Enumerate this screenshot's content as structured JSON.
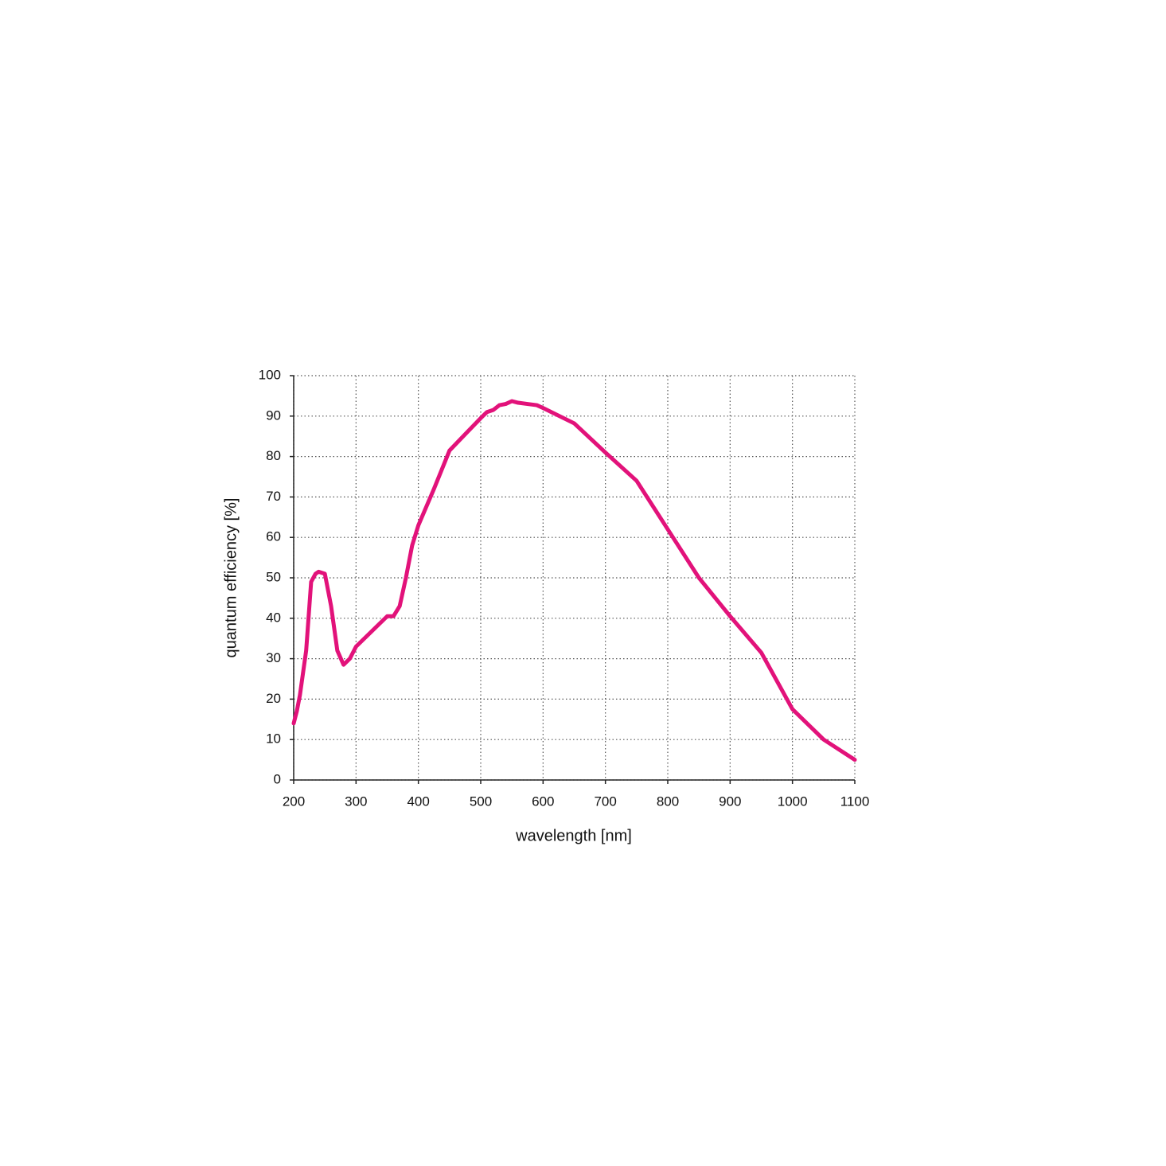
{
  "chart_data": {
    "type": "line",
    "x_label": "wavelength [nm]",
    "y_label": "quantum efficiency [%]",
    "x": [
      200,
      205,
      210,
      220,
      228,
      235,
      240,
      250,
      260,
      270,
      280,
      290,
      300,
      320,
      350,
      360,
      370,
      380,
      390,
      400,
      425,
      450,
      475,
      500,
      510,
      520,
      530,
      540,
      550,
      560,
      575,
      590,
      600,
      650,
      700,
      750,
      800,
      850,
      900,
      950,
      1000,
      1050,
      1100
    ],
    "values": [
      14,
      17,
      21,
      32,
      49,
      51,
      51.5,
      51,
      43,
      32,
      28.5,
      30,
      33,
      36,
      40.5,
      40.5,
      43,
      50,
      58,
      63,
      72,
      81.5,
      85.5,
      89.5,
      91,
      91.5,
      92.7,
      93,
      93.7,
      93.3,
      93,
      92.7,
      92,
      88.2,
      81,
      74,
      62,
      50,
      40.5,
      31.5,
      17.5,
      10,
      5
    ],
    "color": "#e2127a",
    "xlim": [
      200,
      1100
    ],
    "xticks": [
      200,
      300,
      400,
      500,
      600,
      700,
      800,
      900,
      1000,
      1100
    ],
    "ylim": [
      0,
      100
    ],
    "yticks": [
      0,
      10,
      20,
      30,
      40,
      50,
      60,
      70,
      80,
      90,
      100
    ],
    "grid": true
  }
}
